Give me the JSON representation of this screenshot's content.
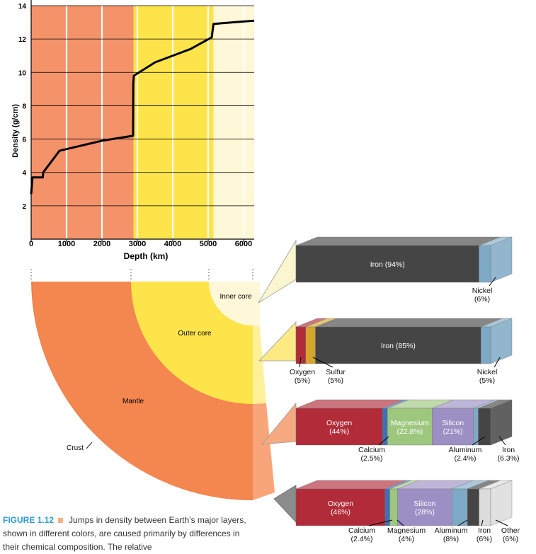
{
  "density_chart": {
    "y_label": "Density (g/cm)",
    "x_label": "Depth (km)",
    "y_ticks": [
      "2",
      "4",
      "6",
      "8",
      "10",
      "12",
      "14"
    ],
    "x_ticks": [
      "0",
      "1000",
      "2000",
      "3000",
      "4000",
      "5000",
      "6000"
    ],
    "layer_colors": {
      "mantle": "#f4926a",
      "outer_core": "#fde44a",
      "inner_core": "#fef7d8"
    }
  },
  "chart_data": {
    "type": "line",
    "xlabel": "Depth (km)",
    "ylabel": "Density (g/cm)",
    "xlim": [
      0,
      6300
    ],
    "ylim": [
      0,
      14
    ],
    "x_ticks": [
      0,
      1000,
      2000,
      3000,
      4000,
      5000,
      6000
    ],
    "y_ticks": [
      2,
      4,
      6,
      8,
      10,
      12,
      14
    ],
    "grid": true,
    "layers": [
      {
        "name": "mantle",
        "from": 0,
        "to": 2890
      },
      {
        "name": "outer_core",
        "from": 2890,
        "to": 5150
      },
      {
        "name": "inner_core",
        "from": 5150,
        "to": 6300
      }
    ],
    "series": [
      {
        "x": [
          0,
          30,
          35,
          330,
          340,
          800,
          2000,
          2880,
          2885,
          2900,
          3500,
          4500,
          5100,
          5150,
          5400,
          6000,
          6300
        ],
        "y": [
          2.7,
          3.5,
          3.7,
          3.7,
          4.0,
          5.3,
          5.9,
          6.2,
          9.3,
          9.8,
          10.6,
          11.4,
          12.1,
          12.9,
          12.95,
          13.05,
          13.1
        ]
      }
    ]
  },
  "cross_section": {
    "inner_core_label": "Inner core",
    "outer_core_label": "Outer core",
    "mantle_label": "Mantle",
    "crust_label": "Crust",
    "colors": {
      "crust": "#f08048",
      "mantle": "#f4874f",
      "outer_core": "#fde44a",
      "inner_core": "#fef7d8"
    }
  },
  "composition_bars": [
    {
      "layer": "inner core",
      "segments": [
        {
          "name": "Iron",
          "percent": 94,
          "label": "Iron (94%)",
          "color": "#454545"
        },
        {
          "name": "Nickel",
          "percent": 6,
          "label": "Nickel\n(6%)",
          "color": "#7ea9c4"
        }
      ]
    },
    {
      "layer": "outer core",
      "segments": [
        {
          "name": "Oxygen",
          "percent": 5,
          "label": "Oxygen\n(5%)",
          "color": "#b12b38"
        },
        {
          "name": "Sulfur",
          "percent": 5,
          "label": "Sulfur\n(5%)",
          "color": "#d6a52b"
        },
        {
          "name": "Iron",
          "percent": 85,
          "label": "Iron (85%)",
          "color": "#454545"
        },
        {
          "name": "Nickel",
          "percent": 5,
          "label": "Nickel\n(5%)",
          "color": "#7ea9c4"
        }
      ]
    },
    {
      "layer": "mantle",
      "segments": [
        {
          "name": "Oxygen",
          "percent": 44,
          "label": "Oxygen\n(44%)",
          "color": "#b12b38"
        },
        {
          "name": "Calcium",
          "percent": 2.5,
          "label": "Calcium\n(2.5%)",
          "color": "#3f6fb8"
        },
        {
          "name": "Magnesium",
          "percent": 22.8,
          "label": "Magnesium\n(22.8%)",
          "color": "#9ec77e"
        },
        {
          "name": "Silicon",
          "percent": 21,
          "label": "Silicon\n(21%)",
          "color": "#9b8fc4"
        },
        {
          "name": "Aluminum",
          "percent": 2.4,
          "label": "Aluminum\n(2.4%)",
          "color": "#7ea9c4"
        },
        {
          "name": "Iron",
          "percent": 6.3,
          "label": "Iron\n(6.3%)",
          "color": "#454545"
        }
      ]
    },
    {
      "layer": "crust",
      "segments": [
        {
          "name": "Oxygen",
          "percent": 46,
          "label": "Oxygen\n(46%)",
          "color": "#b12b38"
        },
        {
          "name": "Calcium",
          "percent": 2.4,
          "label": "Calcium\n(2.4%)",
          "color": "#3f6fb8"
        },
        {
          "name": "Magnesium",
          "percent": 4,
          "label": "Magnesium\n(4%)",
          "color": "#9ec77e"
        },
        {
          "name": "Silicon",
          "percent": 28,
          "label": "Silicon\n(28%)",
          "color": "#9b8fc4"
        },
        {
          "name": "Aluminum",
          "percent": 8,
          "label": "Aluminum\n(8%)",
          "color": "#7ea9c4"
        },
        {
          "name": "Iron",
          "percent": 6,
          "label": "Iron\n(6%)",
          "color": "#454545"
        },
        {
          "name": "Other",
          "percent": 6,
          "label": "Other\n(6%)",
          "color": "#dcdcdc"
        }
      ]
    }
  ],
  "caption": {
    "label": "FIGURE 1.12",
    "text": "Jumps in density between Earth’s major layers, shown in different colors, are caused primarily by differences in their chemical composition. The relative"
  }
}
